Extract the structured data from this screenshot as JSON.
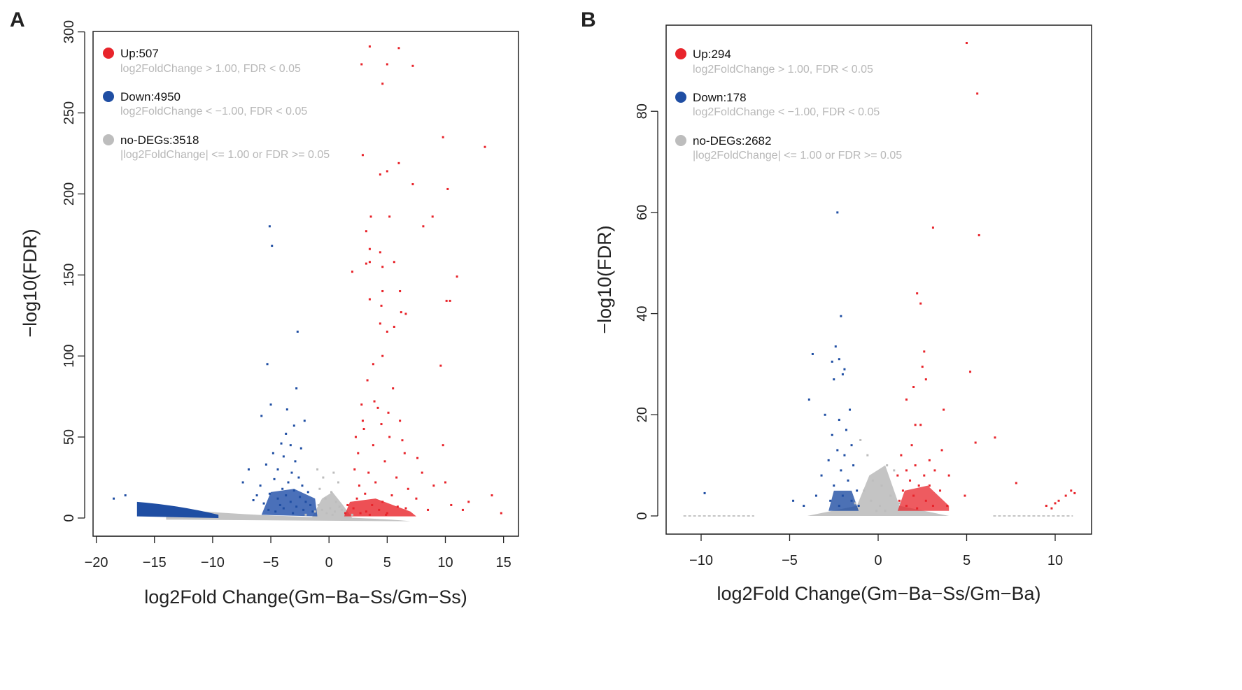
{
  "chart_data": [
    {
      "panel": "A",
      "type": "scatter",
      "title": "",
      "xlabel": "log2Fold Change(Gm−Ba−Ss/Gm−Ss)",
      "ylabel": "−log10(FDR)",
      "xlim": [
        -20,
        16
      ],
      "ylim": [
        -10,
        300
      ],
      "xticks": [
        -20,
        -15,
        -10,
        -5,
        0,
        5,
        10,
        15
      ],
      "xtick_labels": [
        "−20",
        "−15",
        "−10",
        "−5",
        "0",
        "5",
        "10",
        "15"
      ],
      "yticks": [
        0,
        50,
        100,
        150,
        200,
        250,
        300
      ],
      "ytick_labels": [
        "0",
        "50",
        "100",
        "150",
        "200",
        "250",
        "300"
      ],
      "legend_position": "top-left",
      "series": [
        {
          "name": "Up",
          "count_label": "Up:507",
          "criteria": "log2FoldChange > 1.00, FDR < 0.05",
          "color": "#e8242b",
          "points": [
            [
              3.5,
              291
            ],
            [
              6,
              290
            ],
            [
              2.8,
              280
            ],
            [
              5,
              280
            ],
            [
              7.2,
              279
            ],
            [
              4.6,
              268
            ],
            [
              9.8,
              235
            ],
            [
              13.4,
              229
            ],
            [
              2.9,
              224
            ],
            [
              6,
              219
            ],
            [
              5,
              214
            ],
            [
              4.4,
              212
            ],
            [
              7.2,
              206
            ],
            [
              10.2,
              203
            ],
            [
              8.9,
              186
            ],
            [
              3.6,
              186
            ],
            [
              5.2,
              186
            ],
            [
              8.1,
              180
            ],
            [
              3.2,
              177
            ],
            [
              3.5,
              166
            ],
            [
              4.4,
              164
            ],
            [
              5.6,
              158
            ],
            [
              3.5,
              158
            ],
            [
              3.2,
              157
            ],
            [
              4.6,
              155
            ],
            [
              2,
              152
            ],
            [
              11,
              149
            ],
            [
              6.1,
              140
            ],
            [
              4.6,
              140
            ],
            [
              10.1,
              134
            ],
            [
              10.4,
              134
            ],
            [
              3.5,
              135
            ],
            [
              4.5,
              131
            ],
            [
              6.2,
              127
            ],
            [
              6.6,
              126
            ],
            [
              4.4,
              120
            ],
            [
              5.6,
              118
            ],
            [
              5,
              115
            ],
            [
              4.6,
              100
            ],
            [
              3.8,
              95
            ],
            [
              9.6,
              94
            ],
            [
              3.3,
              85
            ],
            [
              5.5,
              80
            ],
            [
              2.8,
              70
            ],
            [
              4.2,
              68
            ],
            [
              6.1,
              60
            ],
            [
              9.8,
              45
            ],
            [
              2.5,
              40
            ],
            [
              7.6,
              37
            ],
            [
              10,
              22
            ],
            [
              12,
              10
            ],
            [
              14,
              14
            ],
            [
              14.8,
              3
            ],
            [
              3,
              55
            ],
            [
              3.8,
              45
            ],
            [
              5.2,
              50
            ],
            [
              6.5,
              40
            ],
            [
              2.2,
              30
            ],
            [
              4.8,
              35
            ],
            [
              3.4,
              28
            ],
            [
              5.8,
              25
            ],
            [
              2.6,
              20
            ],
            [
              4,
              22
            ],
            [
              6.8,
              18
            ],
            [
              3.1,
              15
            ],
            [
              5.4,
              14
            ],
            [
              2.4,
              12
            ],
            [
              4.6,
              10
            ],
            [
              7.5,
              12
            ],
            [
              3.7,
              8
            ],
            [
              5.9,
              7
            ],
            [
              2.1,
              6
            ],
            [
              4.3,
              5
            ],
            [
              6.6,
              6
            ],
            [
              3.2,
              4
            ],
            [
              5,
              3
            ],
            [
              2.7,
              3
            ],
            [
              8.5,
              5
            ],
            [
              1.6,
              8
            ],
            [
              3.5,
              2
            ],
            [
              1.4,
              3
            ],
            [
              4.9,
              2
            ],
            [
              2.9,
              60
            ],
            [
              5.1,
              65
            ],
            [
              3.9,
              72
            ],
            [
              6.3,
              48
            ],
            [
              2.3,
              50
            ],
            [
              4.5,
              58
            ],
            [
              8,
              28
            ],
            [
              9,
              20
            ],
            [
              10.5,
              8
            ],
            [
              11.5,
              5
            ]
          ]
        },
        {
          "name": "Down",
          "count_label": "Down:4950",
          "criteria": "log2FoldChange < −1.00, FDR < 0.05",
          "color": "#1f4ea3",
          "points": [
            [
              -5.1,
              180
            ],
            [
              -4.9,
              168
            ],
            [
              -2.7,
              115
            ],
            [
              -5.3,
              95
            ],
            [
              -2.8,
              80
            ],
            [
              -5,
              70
            ],
            [
              -3.6,
              67
            ],
            [
              -5.8,
              63
            ],
            [
              -2.1,
              60
            ],
            [
              -3,
              57
            ],
            [
              -3.7,
              52
            ],
            [
              -4.1,
              46
            ],
            [
              -3.3,
              45
            ],
            [
              -2.4,
              43
            ],
            [
              -4.8,
              40
            ],
            [
              -3.9,
              38
            ],
            [
              -2.9,
              35
            ],
            [
              -5.4,
              33
            ],
            [
              -4.4,
              30
            ],
            [
              -3.2,
              28
            ],
            [
              -2.6,
              25
            ],
            [
              -4.7,
              24
            ],
            [
              -3.5,
              22
            ],
            [
              -5.9,
              20
            ],
            [
              -2.3,
              20
            ],
            [
              -4,
              18
            ],
            [
              -3,
              17
            ],
            [
              -1.8,
              16
            ],
            [
              -5.1,
              15
            ],
            [
              -3.7,
              14
            ],
            [
              -2.5,
              13
            ],
            [
              -4.4,
              12
            ],
            [
              -6.5,
              11
            ],
            [
              -2,
              10
            ],
            [
              -3.3,
              10
            ],
            [
              -5.6,
              9
            ],
            [
              -4.2,
              8
            ],
            [
              -1.6,
              8
            ],
            [
              -2.8,
              7
            ],
            [
              -3.9,
              6
            ],
            [
              -5.2,
              5
            ],
            [
              -2.2,
              5
            ],
            [
              -4.6,
              4
            ],
            [
              -1.4,
              4
            ],
            [
              -3.1,
              3
            ],
            [
              -6.9,
              30
            ],
            [
              -7.4,
              22
            ],
            [
              -6.2,
              14
            ],
            [
              -18.5,
              12
            ],
            [
              -17.5,
              14
            ]
          ]
        },
        {
          "name": "no-DEGs",
          "count_label": "no-DEGs:3518",
          "criteria": "|log2FoldChange| <= 1.00 or FDR >= 0.05",
          "color": "#bdbdbd",
          "points": [
            [
              -1,
              30
            ],
            [
              -0.5,
              25
            ],
            [
              0.4,
              28
            ],
            [
              0.8,
              22
            ],
            [
              -0.8,
              18
            ],
            [
              0.2,
              16
            ],
            [
              -0.3,
              12
            ],
            [
              0.6,
              10
            ],
            [
              -0.9,
              8
            ],
            [
              0.9,
              7
            ],
            [
              0.1,
              6
            ],
            [
              -0.6,
              5
            ],
            [
              0.5,
              4
            ],
            [
              -0.2,
              3
            ],
            [
              0.3,
              2
            ],
            [
              -2,
              2
            ],
            [
              2,
              2
            ],
            [
              -1.2,
              4
            ],
            [
              1.1,
              5
            ]
          ]
        }
      ]
    },
    {
      "panel": "B",
      "type": "scatter",
      "title": "",
      "xlabel": "log2Fold Change(Gm−Ba−Ss/Gm−Ba)",
      "ylabel": "−log10(FDR)",
      "xlim": [
        -11,
        11.5
      ],
      "ylim": [
        -3.7,
        95
      ],
      "xticks": [
        -10,
        -5,
        0,
        5,
        10
      ],
      "xtick_labels": [
        "−10",
        "−5",
        "0",
        "5",
        "10"
      ],
      "yticks": [
        0,
        20,
        40,
        60,
        80
      ],
      "ytick_labels": [
        "0",
        "20",
        "40",
        "60",
        "80"
      ],
      "legend_position": "top-left",
      "series": [
        {
          "name": "Up",
          "count_label": "Up:294",
          "criteria": "log2FoldChange > 1.00, FDR < 0.05",
          "color": "#e8242b",
          "points": [
            [
              5,
              93.5
            ],
            [
              5.6,
              83.5
            ],
            [
              3.1,
              57
            ],
            [
              5.7,
              55.5
            ],
            [
              2.2,
              44
            ],
            [
              2.4,
              42
            ],
            [
              2.6,
              32.5
            ],
            [
              2.5,
              29.5
            ],
            [
              2.7,
              27
            ],
            [
              5.2,
              28.5
            ],
            [
              1.6,
              23
            ],
            [
              2,
              25.5
            ],
            [
              3.7,
              21
            ],
            [
              2.4,
              18
            ],
            [
              2.1,
              18
            ],
            [
              6.6,
              15.5
            ],
            [
              5.5,
              14.5
            ],
            [
              1.9,
              14
            ],
            [
              3.6,
              13
            ],
            [
              1.3,
              12
            ],
            [
              2.9,
              11
            ],
            [
              2.1,
              10
            ],
            [
              1.6,
              9
            ],
            [
              3.2,
              9
            ],
            [
              1.1,
              8
            ],
            [
              2.6,
              8
            ],
            [
              4,
              8
            ],
            [
              1.8,
              7
            ],
            [
              2.3,
              6
            ],
            [
              2.9,
              6
            ],
            [
              1.4,
              5
            ],
            [
              3.5,
              5
            ],
            [
              2,
              4
            ],
            [
              1.2,
              3
            ],
            [
              2.7,
              3
            ],
            [
              1.6,
              2
            ],
            [
              3.1,
              2
            ],
            [
              2.2,
              1.5
            ],
            [
              3.9,
              2
            ],
            [
              7.8,
              6.5
            ],
            [
              9.5,
              2
            ],
            [
              10.2,
              3
            ],
            [
              10.6,
              4
            ],
            [
              10.9,
              5
            ],
            [
              11.1,
              4.5
            ],
            [
              10,
              2.5
            ],
            [
              9.8,
              1.5
            ],
            [
              4.9,
              4
            ]
          ]
        },
        {
          "name": "Down",
          "count_label": "Down:178",
          "criteria": "log2FoldChange < −1.00, FDR < 0.05",
          "color": "#1f4ea3",
          "points": [
            [
              -2.3,
              60
            ],
            [
              -2.1,
              39.5
            ],
            [
              -2.4,
              33.5
            ],
            [
              -3.7,
              32
            ],
            [
              -2.2,
              31
            ],
            [
              -2.6,
              30.5
            ],
            [
              -1.9,
              29
            ],
            [
              -2,
              28
            ],
            [
              -2.5,
              27
            ],
            [
              -3.9,
              23
            ],
            [
              -1.6,
              21
            ],
            [
              -3,
              20
            ],
            [
              -2.2,
              19
            ],
            [
              -1.8,
              17
            ],
            [
              -2.6,
              16
            ],
            [
              -1.5,
              14
            ],
            [
              -2.3,
              13
            ],
            [
              -1.9,
              12
            ],
            [
              -2.8,
              11
            ],
            [
              -1.4,
              10
            ],
            [
              -2.1,
              9
            ],
            [
              -3.2,
              8
            ],
            [
              -1.7,
              7
            ],
            [
              -2.5,
              6
            ],
            [
              -1.2,
              5
            ],
            [
              -2,
              4
            ],
            [
              -3.5,
              4
            ],
            [
              -1.5,
              3
            ],
            [
              -2.7,
              3
            ],
            [
              -1.1,
              2
            ],
            [
              -2.2,
              2
            ],
            [
              -4.8,
              3
            ],
            [
              -4.2,
              2
            ],
            [
              -9.8,
              4.5
            ]
          ]
        },
        {
          "name": "no-DEGs",
          "count_label": "no-DEGs:2682",
          "criteria": "|log2FoldChange| <= 1.00 or FDR >= 0.05",
          "color": "#bdbdbd",
          "points": [
            [
              -1,
              15
            ],
            [
              -0.6,
              12
            ],
            [
              0.5,
              10
            ],
            [
              0.9,
              9
            ],
            [
              -0.3,
              7
            ],
            [
              0.2,
              6
            ],
            [
              -0.8,
              5
            ],
            [
              0.7,
              4
            ],
            [
              -0.4,
              3
            ],
            [
              0.1,
              2
            ],
            [
              -1.3,
              2.5
            ],
            [
              1.2,
              2.5
            ],
            [
              0.4,
              1
            ],
            [
              -0.1,
              1
            ]
          ]
        }
      ]
    }
  ]
}
